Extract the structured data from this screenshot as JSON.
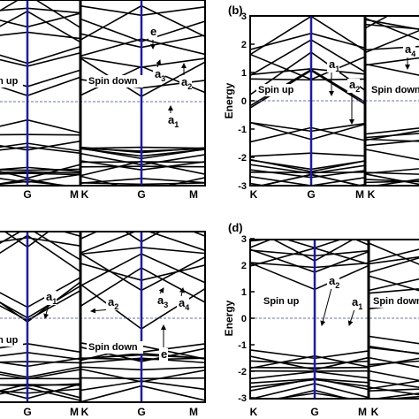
{
  "panels": [
    {
      "x_labels": [
        "G",
        "M",
        "K",
        "G",
        "M"
      ],
      "spin_labels": [
        "Spin up",
        "Spin down"
      ],
      "annotations": [
        {
          "base": "e"
        },
        {
          "base": "a",
          "sub": "3"
        },
        {
          "base": "a",
          "sub": "2"
        },
        {
          "base": "a",
          "sub": "1"
        }
      ]
    },
    {
      "label": "(b)",
      "axis_label": "Energy",
      "yticks": [
        3,
        2,
        1,
        0,
        -1,
        -2,
        -3
      ],
      "x_labels": [
        "K",
        "G",
        "M",
        "K"
      ],
      "spin_labels": [
        "Spin up",
        "Spin down"
      ],
      "annotations": [
        {
          "base": "a",
          "sub": "1"
        },
        {
          "base": "a",
          "sub": "2"
        },
        {
          "base": "a",
          "sub": "4"
        }
      ]
    },
    {
      "x_labels": [
        "G",
        "M",
        "K",
        "G",
        "M"
      ],
      "spin_labels": [
        "Spin up",
        "Spin down"
      ],
      "annotations": [
        {
          "base": "a",
          "sub": "1"
        },
        {
          "base": "a",
          "sub": "2"
        },
        {
          "base": "a",
          "sub": "3"
        },
        {
          "base": "a",
          "sub": "4"
        },
        {
          "base": "e"
        }
      ]
    },
    {
      "label": "(d)",
      "axis_label": "Energy",
      "yticks": [
        3,
        2,
        1,
        0,
        -1,
        -2,
        -3
      ],
      "x_labels": [
        "K",
        "G",
        "M",
        "K"
      ],
      "spin_labels": [
        "Spin up",
        "Spin down"
      ],
      "annotations": [
        {
          "base": "a",
          "sub": "2"
        },
        {
          "base": "a",
          "sub": "1"
        }
      ]
    }
  ]
}
